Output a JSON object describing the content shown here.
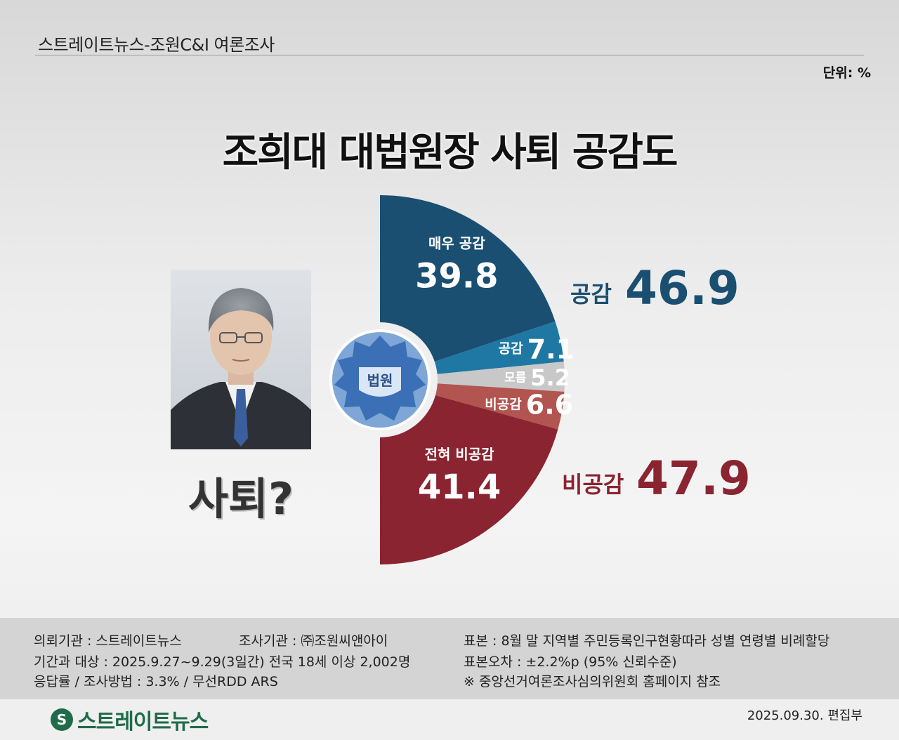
{
  "header": {
    "title": "스트레이트뉴스-조원C&I 여론조사",
    "unit": "단위: %"
  },
  "main_title": "조희대 대법원장 사퇴 공감도",
  "portrait_caption": "사퇴?",
  "emblem_text": "법원",
  "summary": {
    "agree_label": "공감",
    "agree_value": "46.9",
    "disagree_label": "비공감",
    "disagree_value": "47.9"
  },
  "colors": {
    "strongly_agree": "#1b4f72",
    "agree": "#1f78a3",
    "unknown": "#c8c8c8",
    "disagree": "#b25450",
    "strongly_disagree": "#8a2430",
    "agree_text": "#1b4f72",
    "disagree_text": "#8a2430"
  },
  "chart_data": {
    "type": "pie",
    "shape": "semicircle-donut",
    "title": "조희대 대법원장 사퇴 공감도",
    "unit": "%",
    "slices": [
      {
        "label": "매우 공감",
        "value": 39.8
      },
      {
        "label": "공감",
        "value": 7.1
      },
      {
        "label": "모름",
        "value": 5.2
      },
      {
        "label": "비공감",
        "value": 6.6
      },
      {
        "label": "전혀 비공감",
        "value": 41.4
      }
    ]
  },
  "footer": {
    "line1_left": "의뢰기관 : 스트레이트뉴스",
    "line1_mid": "조사기관 : ㈜조원씨앤아이",
    "line1_right": "표본 : 8월 말 지역별 주민등록인구현황따라 성별 연령별 비례할당",
    "line2_left": "기간과 대상 : 2025.9.27~9.29(3일간)   전국 18세 이상  2,002명",
    "line2_right": "표본오차 : ±2.2%p (95% 신뢰수준)",
    "line3_left": "응답률 / 조사방법 : 3.3% / 무선RDD ARS",
    "line3_right": "※ 중앙선거여론조사심의위원회 홈페이지 참조"
  },
  "brand": {
    "logo_text": "스트레이트뉴스",
    "date": "2025.09.30. 편집부"
  }
}
